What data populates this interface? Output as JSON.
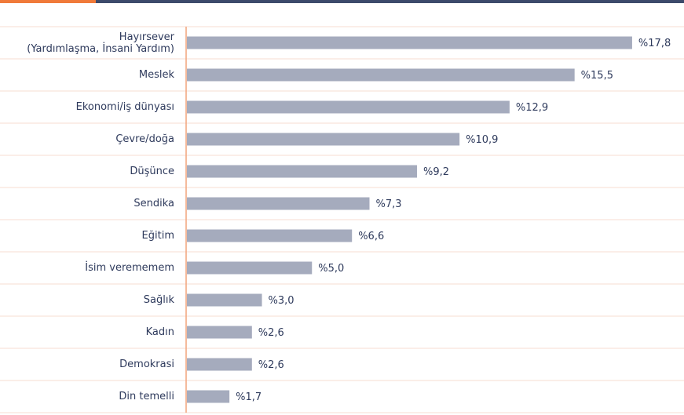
{
  "chart_data": {
    "type": "bar",
    "orientation": "horizontal",
    "color": "#a5abbd",
    "categories": [
      "Hayırsever\n(Yardımlaşma, İnsani Yardım)",
      "Meslek",
      "Ekonomi/iş dünyası",
      "Çevre/doğa",
      "Düşünce",
      "Sendika",
      "Eğitim",
      "İsim verememem",
      "Sağlık",
      "Kadın",
      "Demokrasi",
      "Din temelli"
    ],
    "values": [
      17.8,
      15.5,
      12.9,
      10.9,
      9.2,
      7.3,
      6.6,
      5.0,
      3.0,
      2.6,
      2.6,
      1.7
    ],
    "value_labels": [
      "%17,8",
      "%15,5",
      "%12,9",
      "%10,9",
      "%9,2",
      "%7,3",
      "%6,6",
      "%5,0",
      "%3,0",
      "%2,6",
      "%2,6",
      "%1,7"
    ]
  }
}
